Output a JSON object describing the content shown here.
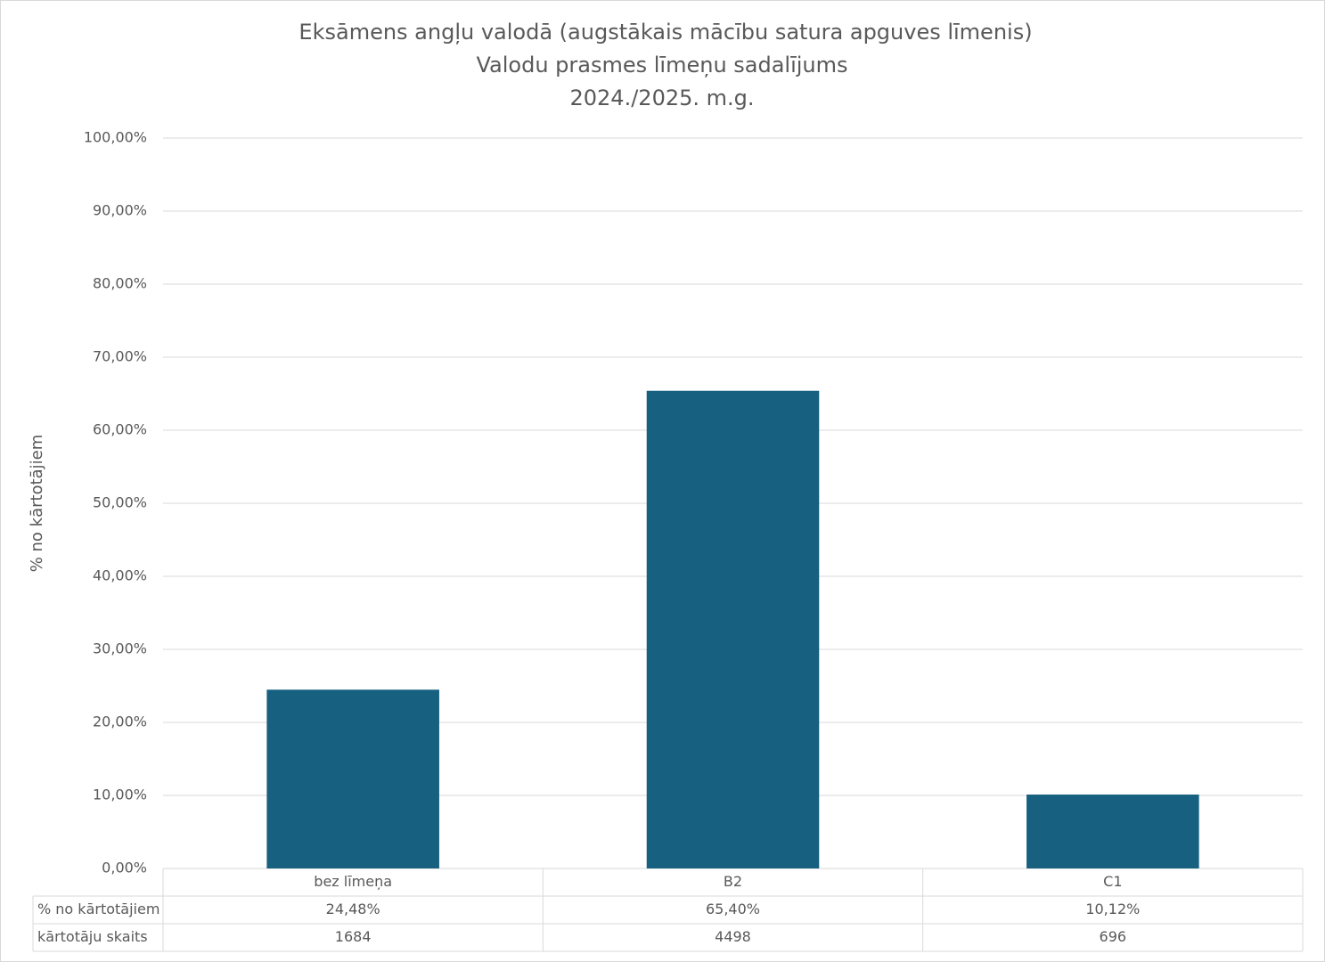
{
  "chart_data": {
    "type": "bar",
    "title": [
      "Eksāmens angļu valodā (augstākais mācību satura apguves līmenis)",
      "Valodu prasmes līmeņu sadalījums",
      "2024./2025. m.g."
    ],
    "y_label": "% no kārtotājiem",
    "categories": [
      "bez līmeņa",
      "B2",
      "C1"
    ],
    "series": [
      {
        "name": "% no kārtotājiem",
        "color": "#186080",
        "values": [
          24.48,
          65.4,
          10.12
        ],
        "value_labels": [
          "24,48%",
          "65,40%",
          "10,12%"
        ]
      }
    ],
    "data_table": [
      {
        "name": "kārtotāju skaits",
        "values": [
          1684,
          4498,
          696
        ]
      }
    ],
    "ylim": [
      0,
      100
    ],
    "yticks": [
      {
        "value": 0,
        "label": "0,00%"
      },
      {
        "value": 10,
        "label": "10,00%"
      },
      {
        "value": 20,
        "label": "20,00%"
      },
      {
        "value": 30,
        "label": "30,00%"
      },
      {
        "value": 40,
        "label": "40,00%"
      },
      {
        "value": 50,
        "label": "50,00%"
      },
      {
        "value": 60,
        "label": "60,00%"
      },
      {
        "value": 70,
        "label": "70,00%"
      },
      {
        "value": 80,
        "label": "80,00%"
      },
      {
        "value": 90,
        "label": "90,00%"
      },
      {
        "value": 100,
        "label": "100,00%"
      }
    ],
    "grid": true
  }
}
